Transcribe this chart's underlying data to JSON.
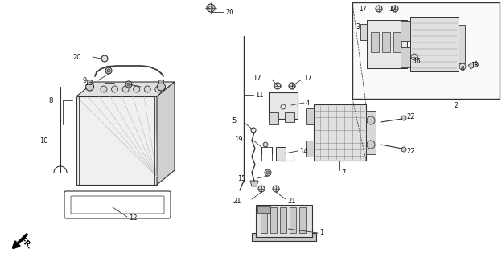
{
  "bg_color": "#ffffff",
  "lc": "#333333",
  "lc_light": "#888888",
  "fig_width": 6.24,
  "fig_height": 3.2,
  "dpi": 100,
  "font_size": 6.0
}
